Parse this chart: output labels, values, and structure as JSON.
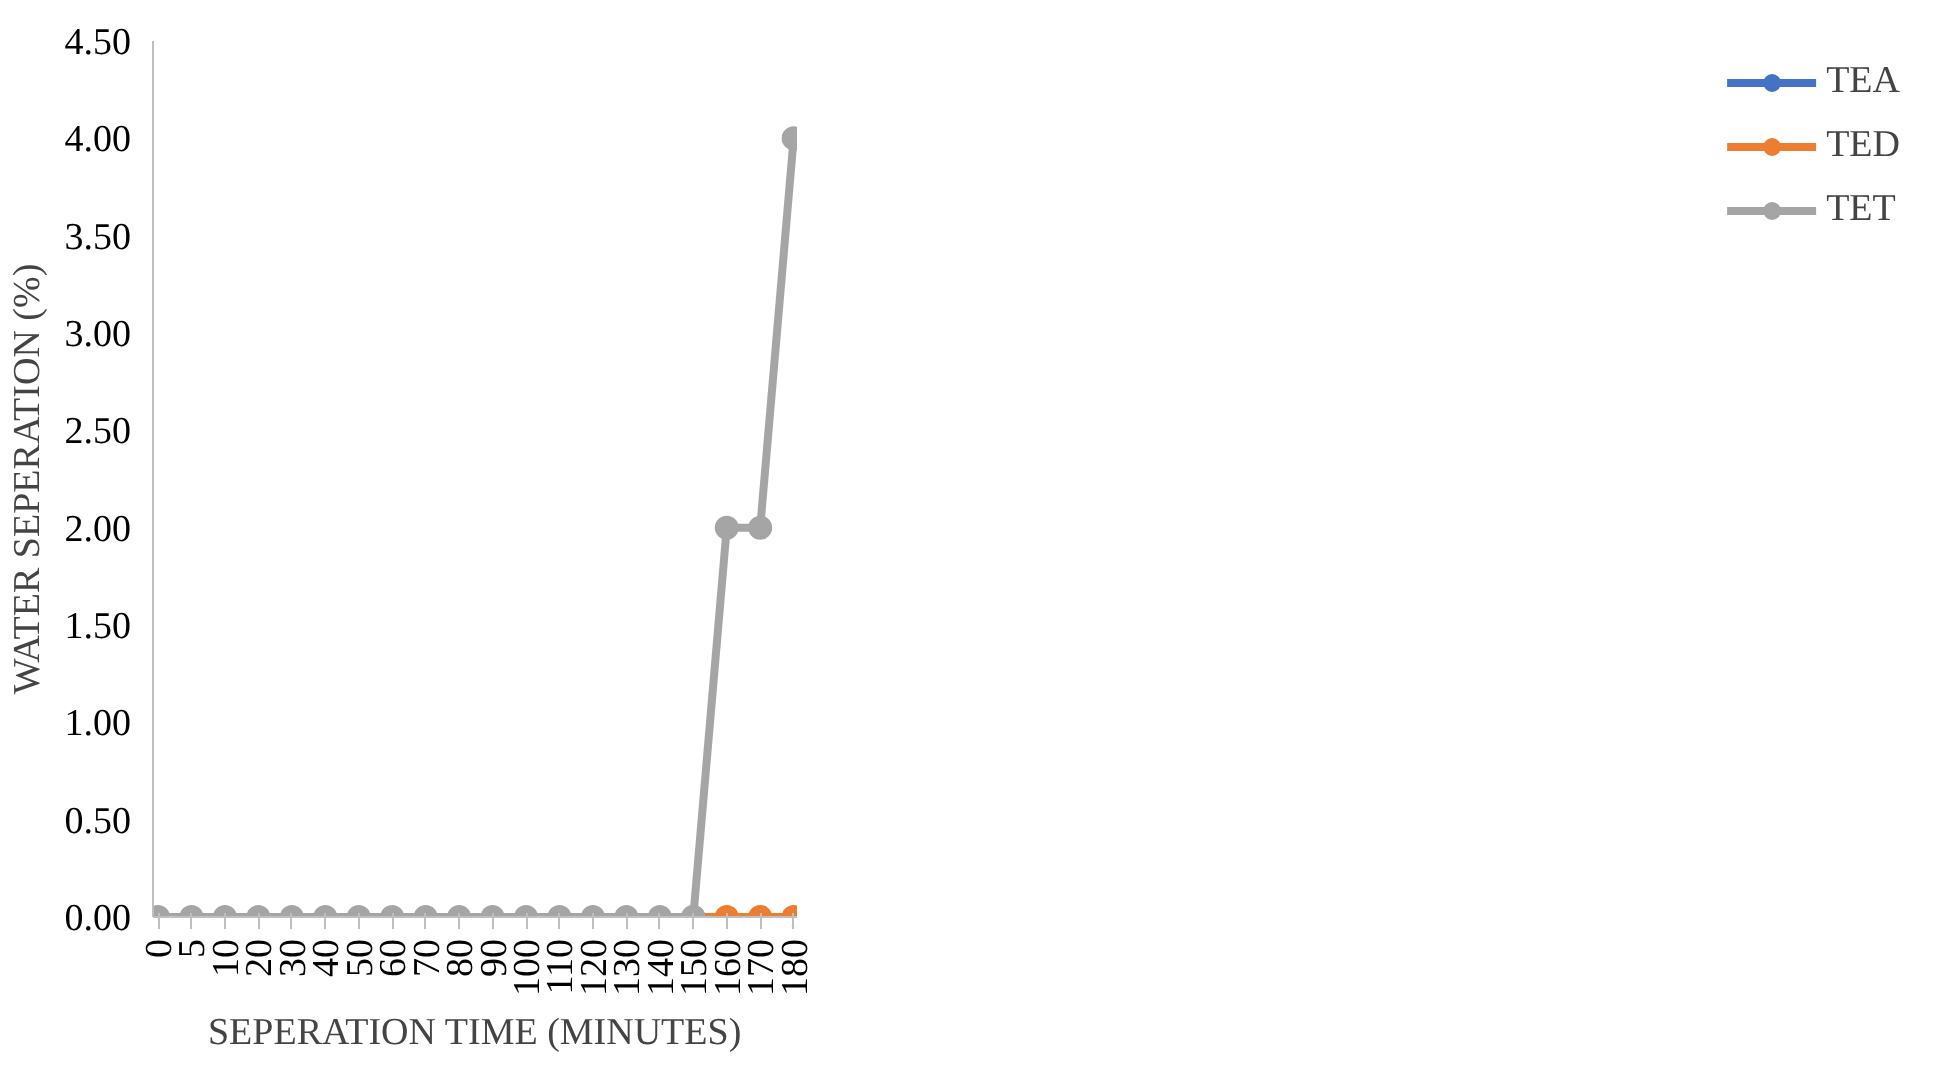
{
  "chart_data": {
    "type": "line",
    "xlabel": "SEPERATION TIME (MINUTES)",
    "ylabel": "WATER SEPERATION (%)",
    "categories": [
      "0",
      "5",
      "10",
      "20",
      "30",
      "40",
      "50",
      "60",
      "70",
      "80",
      "90",
      "100",
      "110",
      "120",
      "130",
      "140",
      "150",
      "160",
      "170",
      "180"
    ],
    "series": [
      {
        "name": "TEA",
        "color": "#4472c4",
        "values": [
          null,
          null,
          null,
          null,
          null,
          null,
          null,
          null,
          null,
          null,
          null,
          null,
          null,
          null,
          null,
          null,
          null,
          null,
          null,
          null
        ]
      },
      {
        "name": "TED",
        "color": "#ed7d31",
        "values": [
          null,
          null,
          null,
          null,
          null,
          null,
          null,
          null,
          null,
          null,
          null,
          null,
          null,
          null,
          null,
          null,
          0,
          0,
          0,
          0
        ]
      },
      {
        "name": "TET",
        "color": "#a5a5a5",
        "values": [
          0,
          0,
          0,
          0,
          0,
          0,
          0,
          0,
          0,
          0,
          0,
          0,
          0,
          0,
          0,
          0,
          0,
          2,
          2,
          4
        ]
      }
    ],
    "ylim": [
      0,
      4.5
    ],
    "yticks": [
      {
        "value": 0,
        "label": "0.00"
      },
      {
        "value": 0.5,
        "label": "0.50"
      },
      {
        "value": 1,
        "label": "1.00"
      },
      {
        "value": 1.5,
        "label": "1.50"
      },
      {
        "value": 2,
        "label": "2.00"
      },
      {
        "value": 2.5,
        "label": "2.50"
      },
      {
        "value": 3,
        "label": "3.00"
      },
      {
        "value": 3.5,
        "label": "3.50"
      },
      {
        "value": 4,
        "label": "4.00"
      },
      {
        "value": 4.5,
        "label": "4.50"
      }
    ],
    "grid": false,
    "legend": "right",
    "marker": "circle",
    "line_style": "solid"
  }
}
